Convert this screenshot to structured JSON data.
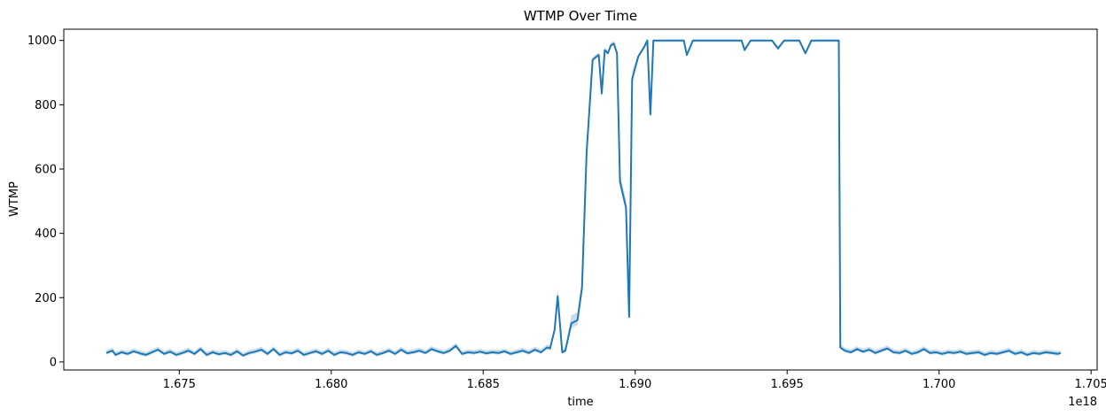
{
  "chart_data": {
    "type": "line",
    "title": "WTMP Over Time",
    "xlabel": "time",
    "ylabel": "WTMP",
    "x_offset_label": "1e18",
    "x_scale_note": "x values in units of 1e18",
    "xlim": [
      1.6712,
      1.7052
    ],
    "ylim": [
      -25,
      1035
    ],
    "x_ticks": [
      1.675,
      1.68,
      1.685,
      1.69,
      1.695,
      1.7,
      1.705
    ],
    "x_tick_labels": [
      "1.675",
      "1.680",
      "1.685",
      "1.690",
      "1.695",
      "1.700",
      "1.705"
    ],
    "y_ticks": [
      0,
      200,
      400,
      600,
      800,
      1000
    ],
    "y_tick_labels": [
      "0",
      "200",
      "400",
      "600",
      "800",
      "1000"
    ],
    "grid": false,
    "legend": "none",
    "line_color": "#1f77b4",
    "band_color": "#1f77b4",
    "series": [
      {
        "points": [
          [
            1.6726,
            28
          ],
          [
            1.6728,
            35
          ],
          [
            1.6729,
            22
          ],
          [
            1.6731,
            30
          ],
          [
            1.6733,
            25
          ],
          [
            1.6735,
            33
          ],
          [
            1.6737,
            27
          ],
          [
            1.6739,
            22
          ],
          [
            1.6741,
            30
          ],
          [
            1.6743,
            38
          ],
          [
            1.6745,
            25
          ],
          [
            1.6747,
            32
          ],
          [
            1.6749,
            22
          ],
          [
            1.6751,
            28
          ],
          [
            1.6753,
            35
          ],
          [
            1.6755,
            25
          ],
          [
            1.6757,
            40
          ],
          [
            1.6759,
            22
          ],
          [
            1.6761,
            30
          ],
          [
            1.6763,
            24
          ],
          [
            1.6765,
            28
          ],
          [
            1.6767,
            22
          ],
          [
            1.6769,
            33
          ],
          [
            1.6771,
            20
          ],
          [
            1.6773,
            28
          ],
          [
            1.6775,
            32
          ],
          [
            1.6777,
            38
          ],
          [
            1.6779,
            25
          ],
          [
            1.6781,
            40
          ],
          [
            1.6783,
            22
          ],
          [
            1.6785,
            30
          ],
          [
            1.6787,
            27
          ],
          [
            1.6789,
            35
          ],
          [
            1.6791,
            22
          ],
          [
            1.6793,
            28
          ],
          [
            1.6795,
            33
          ],
          [
            1.6797,
            25
          ],
          [
            1.6799,
            35
          ],
          [
            1.6801,
            22
          ],
          [
            1.6803,
            30
          ],
          [
            1.6805,
            28
          ],
          [
            1.6807,
            22
          ],
          [
            1.6809,
            30
          ],
          [
            1.6811,
            25
          ],
          [
            1.6813,
            33
          ],
          [
            1.6815,
            22
          ],
          [
            1.6817,
            28
          ],
          [
            1.6819,
            35
          ],
          [
            1.6821,
            25
          ],
          [
            1.6823,
            38
          ],
          [
            1.6825,
            27
          ],
          [
            1.6827,
            30
          ],
          [
            1.6829,
            35
          ],
          [
            1.6831,
            28
          ],
          [
            1.6833,
            40
          ],
          [
            1.6835,
            33
          ],
          [
            1.6837,
            28
          ],
          [
            1.6839,
            35
          ],
          [
            1.6841,
            50
          ],
          [
            1.6843,
            25
          ],
          [
            1.6845,
            30
          ],
          [
            1.6847,
            28
          ],
          [
            1.6849,
            32
          ],
          [
            1.6851,
            27
          ],
          [
            1.6853,
            30
          ],
          [
            1.6855,
            28
          ],
          [
            1.6857,
            33
          ],
          [
            1.6859,
            25
          ],
          [
            1.6861,
            30
          ],
          [
            1.6863,
            35
          ],
          [
            1.6865,
            28
          ],
          [
            1.6867,
            38
          ],
          [
            1.6869,
            30
          ],
          [
            1.6871,
            45
          ],
          [
            1.6872,
            42
          ],
          [
            1.68735,
            100
          ],
          [
            1.68745,
            205
          ],
          [
            1.6876,
            30
          ],
          [
            1.6877,
            35
          ],
          [
            1.6879,
            120
          ],
          [
            1.6881,
            130
          ],
          [
            1.68825,
            230
          ],
          [
            1.6884,
            650
          ],
          [
            1.6886,
            940
          ],
          [
            1.6888,
            955
          ],
          [
            1.6889,
            835
          ],
          [
            1.689,
            970
          ],
          [
            1.6891,
            960
          ],
          [
            1.6892,
            985
          ],
          [
            1.6893,
            990
          ],
          [
            1.6894,
            960
          ],
          [
            1.6895,
            560
          ],
          [
            1.6897,
            480
          ],
          [
            1.6898,
            140
          ],
          [
            1.6899,
            880
          ],
          [
            1.6901,
            950
          ],
          [
            1.6903,
            980
          ],
          [
            1.6904,
            1000
          ],
          [
            1.6905,
            770
          ],
          [
            1.6906,
            1000
          ],
          [
            1.6909,
            1000
          ],
          [
            1.6913,
            1000
          ],
          [
            1.6916,
            1000
          ],
          [
            1.6917,
            955
          ],
          [
            1.6919,
            1000
          ],
          [
            1.6925,
            1000
          ],
          [
            1.693,
            1000
          ],
          [
            1.6935,
            1000
          ],
          [
            1.6936,
            970
          ],
          [
            1.6938,
            1000
          ],
          [
            1.6942,
            1000
          ],
          [
            1.6945,
            1000
          ],
          [
            1.6947,
            975
          ],
          [
            1.6949,
            1000
          ],
          [
            1.6954,
            1000
          ],
          [
            1.6956,
            960
          ],
          [
            1.6958,
            1000
          ],
          [
            1.6963,
            1000
          ],
          [
            1.6967,
            1000
          ],
          [
            1.69675,
            45
          ],
          [
            1.6969,
            35
          ],
          [
            1.6971,
            30
          ],
          [
            1.6973,
            40
          ],
          [
            1.6975,
            32
          ],
          [
            1.6977,
            38
          ],
          [
            1.6979,
            28
          ],
          [
            1.6981,
            35
          ],
          [
            1.6983,
            42
          ],
          [
            1.6985,
            30
          ],
          [
            1.6987,
            28
          ],
          [
            1.6989,
            35
          ],
          [
            1.6991,
            25
          ],
          [
            1.6993,
            30
          ],
          [
            1.6995,
            40
          ],
          [
            1.6997,
            28
          ],
          [
            1.6999,
            30
          ],
          [
            1.7001,
            25
          ],
          [
            1.7003,
            30
          ],
          [
            1.7005,
            28
          ],
          [
            1.7007,
            32
          ],
          [
            1.7009,
            25
          ],
          [
            1.7011,
            28
          ],
          [
            1.7013,
            30
          ],
          [
            1.7015,
            22
          ],
          [
            1.7017,
            28
          ],
          [
            1.7019,
            25
          ],
          [
            1.7021,
            30
          ],
          [
            1.7023,
            35
          ],
          [
            1.7025,
            25
          ],
          [
            1.7027,
            30
          ],
          [
            1.7029,
            22
          ],
          [
            1.7031,
            28
          ],
          [
            1.7033,
            25
          ],
          [
            1.7035,
            30
          ],
          [
            1.7037,
            28
          ],
          [
            1.7039,
            25
          ],
          [
            1.704,
            28
          ]
        ]
      }
    ]
  }
}
